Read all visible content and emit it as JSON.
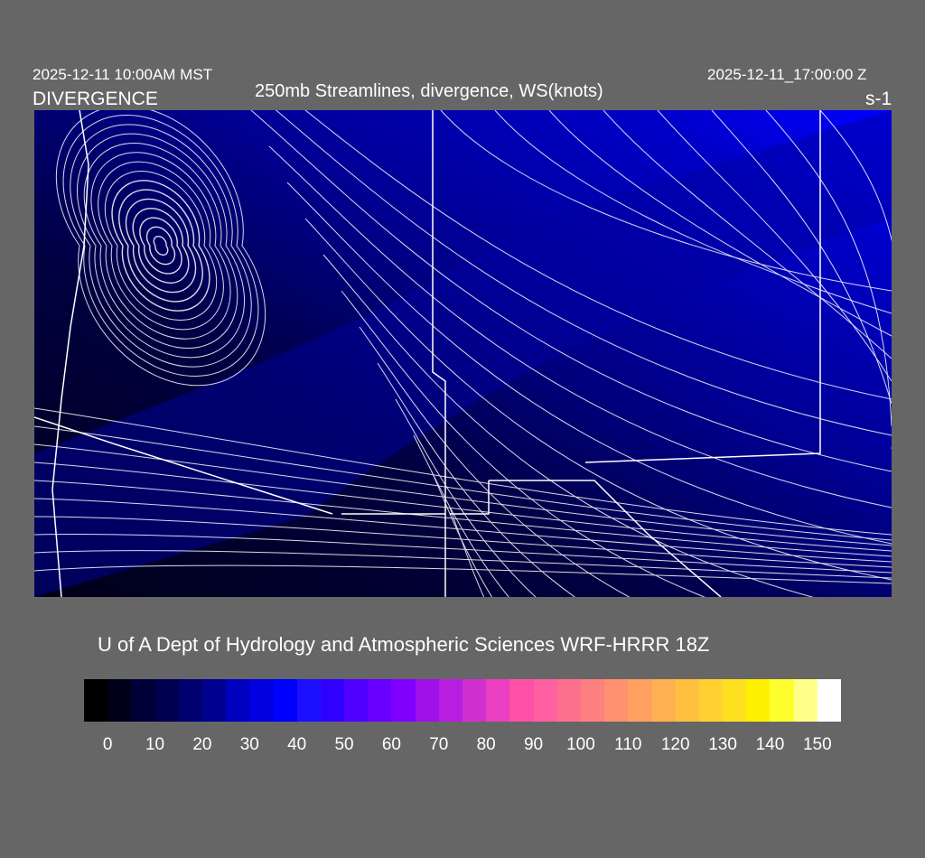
{
  "header": {
    "title": "250mb Streamlines, divergence, WS(knots)",
    "local_time": "2025-12-11 10:00AM MST",
    "field_label": "DIVERGENCE",
    "valid_time": "2025-12-11_17:00:00 Z",
    "sigma_label": "s-1"
  },
  "footer": {
    "credit": "U of A Dept of Hydrology and Atmospheric Sciences WRF-HRRR 18Z"
  },
  "colorbar": {
    "units": "knots",
    "tick_labels": [
      "0",
      "10",
      "20",
      "30",
      "40",
      "50",
      "60",
      "70",
      "80",
      "90",
      "100",
      "110",
      "120",
      "130",
      "140",
      "150"
    ],
    "colors": [
      "#000000",
      "#000018",
      "#000038",
      "#000050",
      "#000070",
      "#000090",
      "#0000c0",
      "#0000e0",
      "#0000ff",
      "#1a10ff",
      "#3000ff",
      "#5000ff",
      "#6800ff",
      "#8000ff",
      "#a010e8",
      "#b81ee0",
      "#d030d0",
      "#e840c0",
      "#ff50a8",
      "#ff60a0",
      "#ff7090",
      "#ff8080",
      "#ff9070",
      "#ffa060",
      "#ffb050",
      "#ffc040",
      "#ffd030",
      "#ffe020",
      "#fff000",
      "#ffff30",
      "#ffff88",
      "#ffffff"
    ]
  },
  "map": {
    "background": "#666666",
    "streamline_color": "#ffffff"
  }
}
